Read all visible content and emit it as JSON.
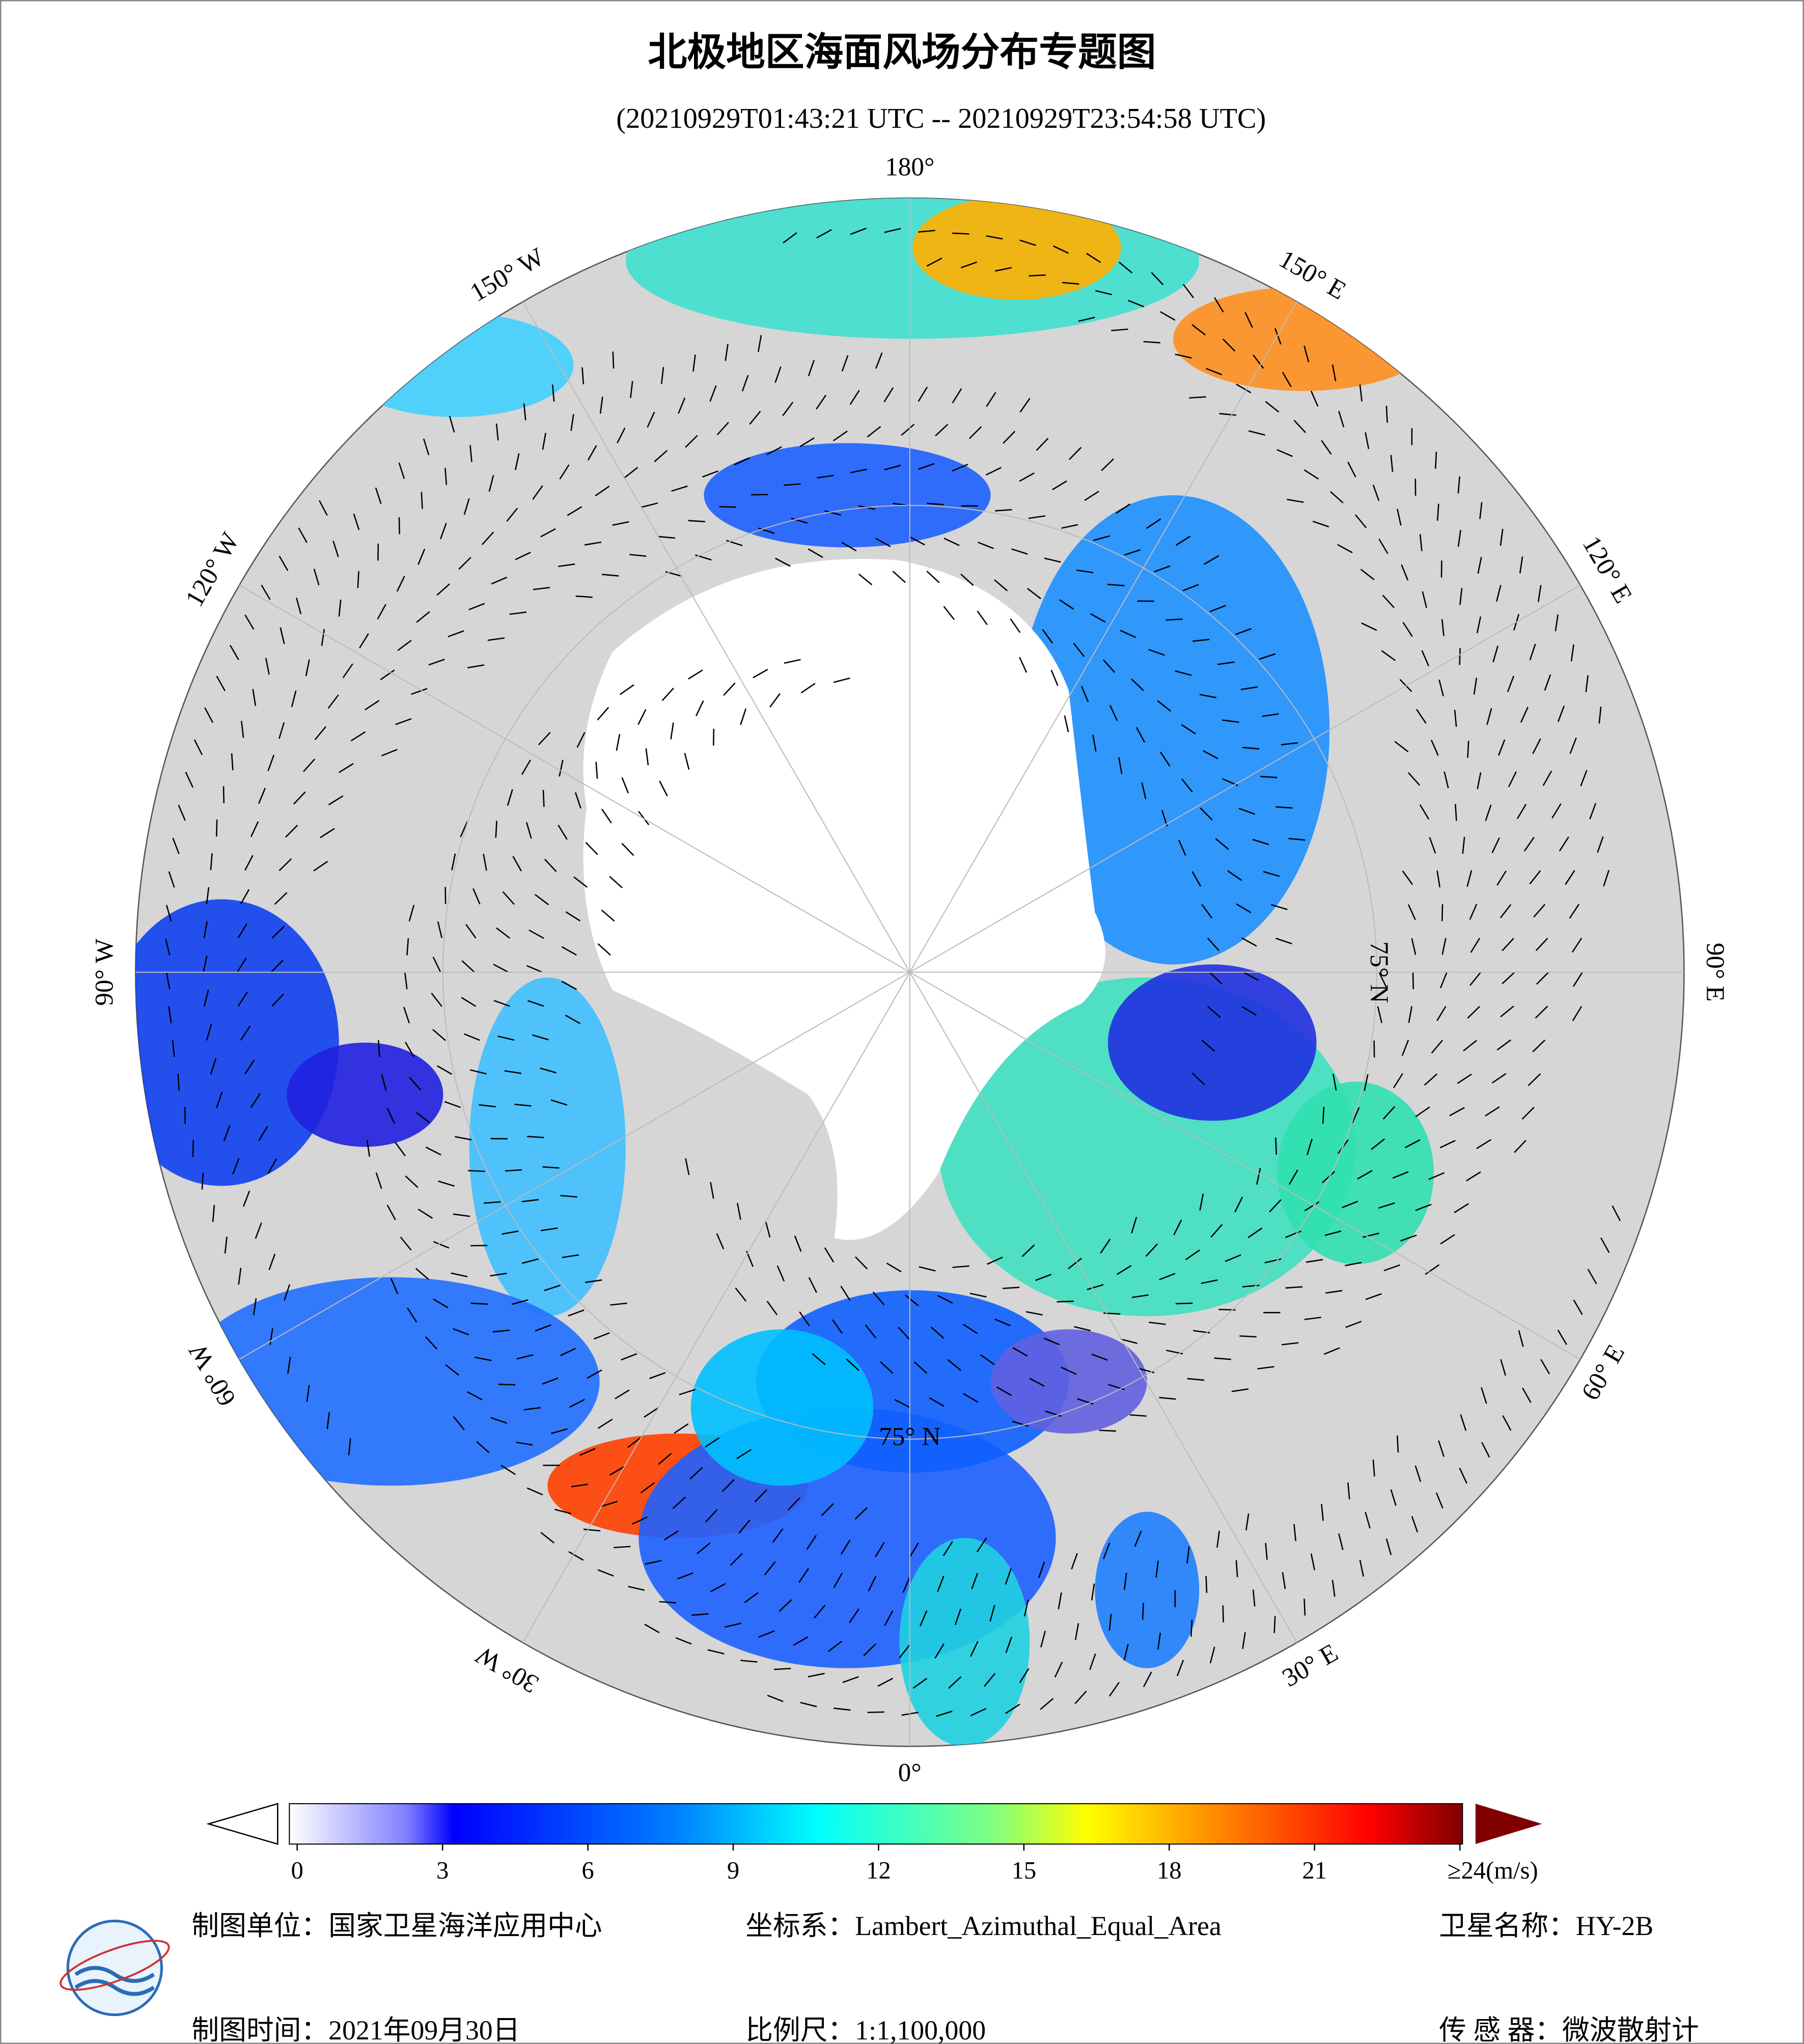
{
  "title": "北极地区海面风场分布专题图",
  "subtitle": "(20210929T01:43:21 UTC -- 20210929T23:54:58 UTC)",
  "map": {
    "meridians": [
      {
        "value": 180,
        "label": "180°"
      },
      {
        "value": 150,
        "label": "150° E"
      },
      {
        "value": 120,
        "label": "120° E"
      },
      {
        "value": 90,
        "label": "90° E"
      },
      {
        "value": 60,
        "label": "60° E"
      },
      {
        "value": 30,
        "label": "30° E"
      },
      {
        "value": 0,
        "label": "0°"
      },
      {
        "value": -30,
        "label": "30° W"
      },
      {
        "value": -60,
        "label": "60° W"
      },
      {
        "value": -90,
        "label": "90° W"
      },
      {
        "value": -120,
        "label": "120° W"
      },
      {
        "value": -150,
        "label": "150° W"
      }
    ],
    "parallel": {
      "value": 75,
      "label": "75° N"
    }
  },
  "colorbar": {
    "range": [
      0,
      24
    ],
    "ticks": [
      0,
      3,
      6,
      9,
      12,
      15,
      18,
      21,
      {
        "value": 24,
        "label": "≥24(m/s)"
      }
    ]
  },
  "footer": {
    "unit": "制图单位：国家卫星海洋应用中心",
    "coordinate_system": "坐标系：Lambert_Azimuthal_Equal_Area",
    "satellite": "卫星名称：HY-2B",
    "date": "制图时间：2021年09月30日",
    "scale": "比例尺：1:1,100,000",
    "sensor": "传 感 器：微波散射计"
  }
}
